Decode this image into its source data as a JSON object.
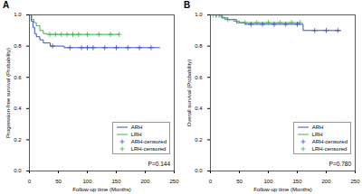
{
  "chart_data": [
    {
      "type": "line",
      "title": "A",
      "x_label": "Follow-up time (Months)",
      "y_label": "Progression-free survival (Probability)",
      "annotation": "P=0.144",
      "xlim": [
        0,
        250
      ],
      "xticks": [
        0,
        50,
        100,
        150,
        200,
        250
      ],
      "ylim": [
        0,
        1
      ],
      "yticks": [
        {
          "value": 0,
          "label": "0.0"
        },
        0.2,
        0.4,
        0.6,
        0.8,
        {
          "value": 1,
          "label": "1.0"
        }
      ],
      "legend": "lower right",
      "series": [
        {
          "name": "ARH",
          "type": "line",
          "line_style": "step",
          "color": "#3b4fb8",
          "x": [
            0,
            3,
            6,
            9,
            12,
            18,
            24,
            36,
            60,
            225
          ],
          "values": [
            1,
            0.96,
            0.92,
            0.88,
            0.86,
            0.84,
            0.82,
            0.8,
            0.79,
            0.79
          ]
        },
        {
          "name": "LRH",
          "type": "line",
          "line_style": "step",
          "color": "#3cb44b",
          "x": [
            0,
            4,
            8,
            12,
            18,
            24,
            30,
            155
          ],
          "values": [
            1,
            0.97,
            0.95,
            0.93,
            0.9,
            0.88,
            0.875,
            0.875
          ]
        },
        {
          "name": "ARH-censored",
          "type": "scatter",
          "marker": "plus",
          "color": "#3b4fb8",
          "x": [
            40,
            70,
            90,
            100,
            110,
            130,
            150,
            170,
            190,
            210
          ],
          "values": [
            0.8,
            0.79,
            0.79,
            0.79,
            0.79,
            0.79,
            0.79,
            0.79,
            0.79,
            0.79
          ]
        },
        {
          "name": "LRH-censored",
          "type": "scatter",
          "marker": "plus",
          "color": "#3cb44b",
          "x": [
            35,
            45,
            55,
            65,
            75,
            85,
            100,
            120,
            140,
            155
          ],
          "values": [
            0.875,
            0.875,
            0.875,
            0.875,
            0.875,
            0.875,
            0.875,
            0.875,
            0.875,
            0.875
          ]
        }
      ]
    },
    {
      "type": "line",
      "title": "B",
      "x_label": "Follow-up time (Months)",
      "y_label": "Overall survival (Probability)",
      "annotation": "P=0.780",
      "xlim": [
        0,
        250
      ],
      "xticks": [
        0,
        50,
        100,
        150,
        200,
        250
      ],
      "ylim": [
        0,
        1
      ],
      "yticks": [
        {
          "value": 0,
          "label": "0.0"
        },
        0.2,
        0.4,
        0.6,
        0.8,
        {
          "value": 1,
          "label": "1.0"
        }
      ],
      "legend": "lower right",
      "series": [
        {
          "name": "ARH",
          "type": "line",
          "line_style": "step",
          "color": "#3b4fb8",
          "x": [
            0,
            20,
            30,
            45,
            60,
            160,
            225
          ],
          "values": [
            1,
            0.98,
            0.97,
            0.95,
            0.94,
            0.9,
            0.9
          ]
        },
        {
          "name": "LRH",
          "type": "line",
          "line_style": "step",
          "color": "#3cb44b",
          "x": [
            0,
            18,
            25,
            40,
            50,
            155
          ],
          "values": [
            1,
            0.985,
            0.97,
            0.96,
            0.95,
            0.95
          ]
        },
        {
          "name": "ARH-censored",
          "type": "scatter",
          "marker": "plus",
          "color": "#3b4fb8",
          "x": [
            10,
            15,
            70,
            90,
            110,
            130,
            150,
            180,
            200,
            220
          ],
          "values": [
            1,
            1,
            0.94,
            0.94,
            0.94,
            0.94,
            0.94,
            0.9,
            0.9,
            0.9
          ]
        },
        {
          "name": "LRH-censored",
          "type": "scatter",
          "marker": "plus",
          "color": "#3cb44b",
          "x": [
            5,
            10,
            30,
            60,
            80,
            100,
            120,
            140,
            155
          ],
          "values": [
            1,
            1,
            0.97,
            0.95,
            0.95,
            0.95,
            0.95,
            0.95,
            0.95
          ]
        }
      ]
    }
  ]
}
